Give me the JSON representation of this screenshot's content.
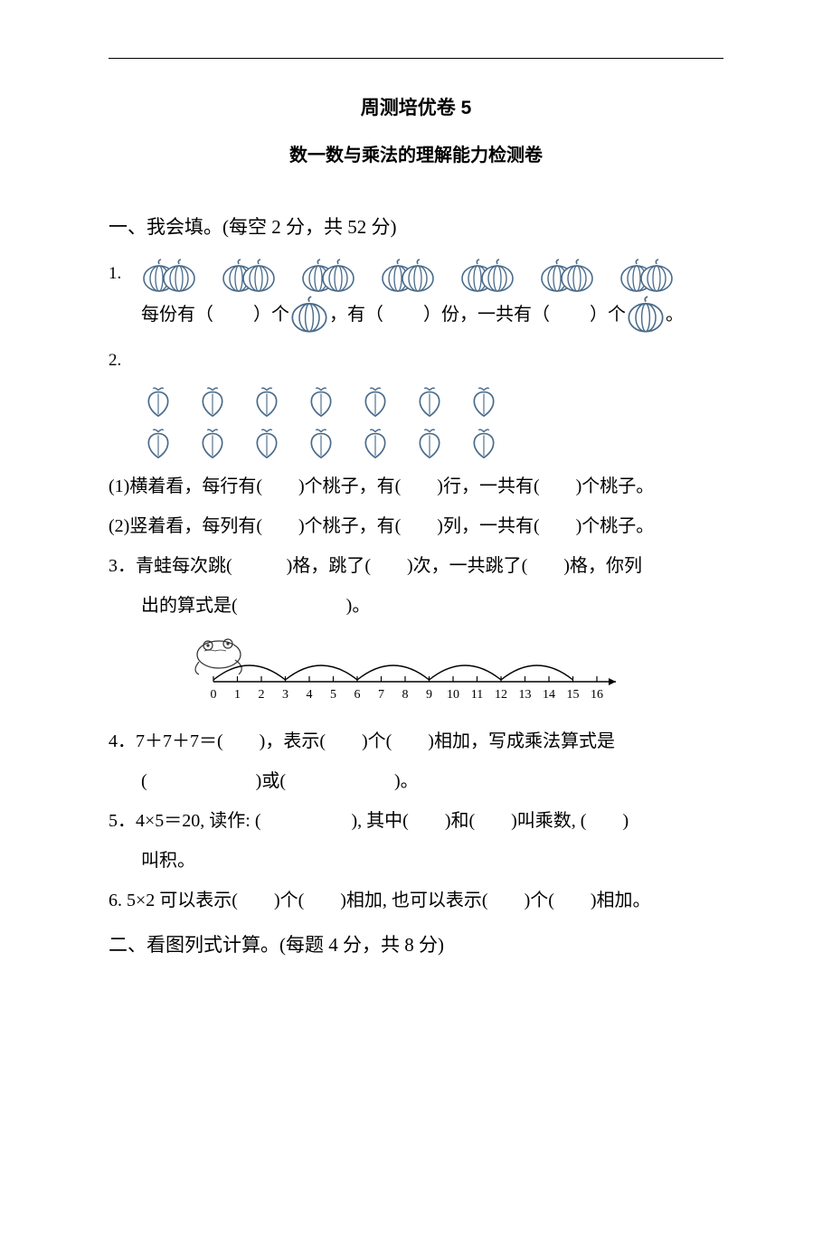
{
  "title": "周测培优卷 5",
  "subtitle": "数一数与乘法的理解能力检测卷",
  "section1": {
    "heading": "一、我会填。(每空 2 分，共 52 分)",
    "q1": {
      "num": "1.",
      "text_a": "每份有（",
      "text_b": "）个",
      "text_c": "，有（",
      "text_d": "）份，一共有（",
      "text_e": "）个",
      "text_f": "。"
    },
    "q2": {
      "num": "2.",
      "l1": "(1)横着看，每行有(　　)个桃子，有(　　)行，一共有(　　)个桃子。",
      "l2": "(2)竖着看，每列有(　　)个桃子，有(　　)列，一共有(　　)个桃子。"
    },
    "q3": {
      "l1": "3．青蛙每次跳(　　　)格，跳了(　　)次，一共跳了(　　)格，你列",
      "l2": "出的算式是(　　　　　　)。"
    },
    "q4": {
      "l1": "4．7＋7＋7＝(　　)，表示(　　)个(　　)相加，写成乘法算式是",
      "l2": "(　　　　　　)或(　　　　　　)。"
    },
    "q5": {
      "l1": "5．4×5＝20, 读作: (　　　　　), 其中(　　)和(　　)叫乘数, (　　)",
      "l2": "叫积。"
    },
    "q6": "6. 5×2 可以表示(　　)个(　　)相加, 也可以表示(　　)个(　　)相加。"
  },
  "section2": {
    "heading": "二、看图列式计算。(每题 4 分，共 8 分)"
  },
  "colors": {
    "stroke": "#4a6b8a",
    "text": "#000000"
  },
  "numberline": {
    "ticks": [
      "0",
      "1",
      "2",
      "3",
      "4",
      "5",
      "6",
      "7",
      "8",
      "9",
      "10",
      "11",
      "12",
      "13",
      "14",
      "15",
      "16"
    ]
  }
}
